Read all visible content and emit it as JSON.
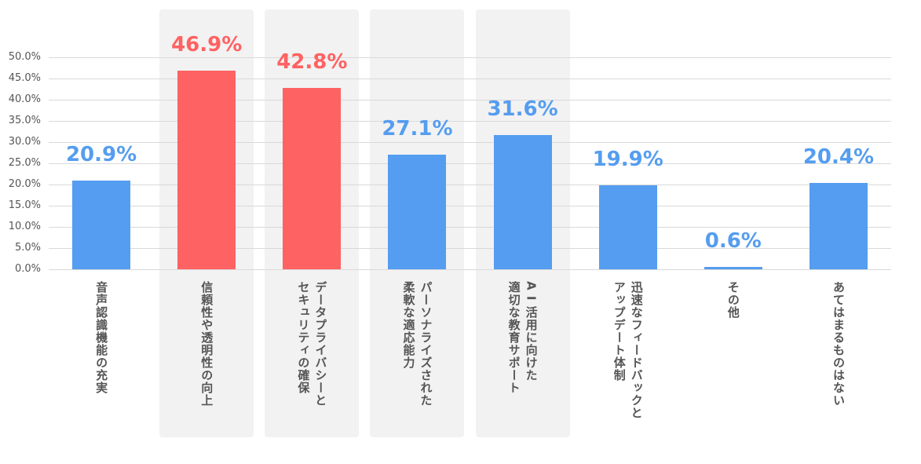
{
  "chart_data": {
    "type": "bar",
    "categories": [
      [
        "音声認識機能の充実"
      ],
      [
        "信頼性や透明性の向上"
      ],
      [
        "データプライバシーと",
        "セキュリティの確保"
      ],
      [
        "パーソナライズされた",
        "柔軟な適応能力"
      ],
      [
        "A I 活用に向けた",
        "適切な教育サポート"
      ],
      [
        "迅速なフィードバックと",
        "アップデート体制"
      ],
      [
        "その他"
      ],
      [
        "あてはまるものはない"
      ]
    ],
    "values": [
      20.9,
      46.9,
      42.8,
      27.1,
      31.6,
      19.9,
      0.6,
      20.4
    ],
    "value_labels": [
      "20.9%",
      "46.9%",
      "42.8%",
      "27.1%",
      "31.6%",
      "19.9%",
      "0.6%",
      "20.4%"
    ],
    "highlighted": [
      false,
      true,
      true,
      true,
      true,
      false,
      false,
      false
    ],
    "highlight_bar_color": [
      false,
      true,
      true,
      false,
      false,
      false,
      false,
      false
    ],
    "yticks": [
      "0.0%",
      "5.0%",
      "10.0%",
      "15.0%",
      "20.0%",
      "25.0%",
      "30.0%",
      "35.0%",
      "40.0%",
      "45.0%",
      "50.0%"
    ],
    "ylim": [
      0,
      50
    ],
    "grid": true,
    "colors": {
      "default": "#559df0",
      "highlight": "#ff6262",
      "panel": "#f2f2f2"
    }
  }
}
